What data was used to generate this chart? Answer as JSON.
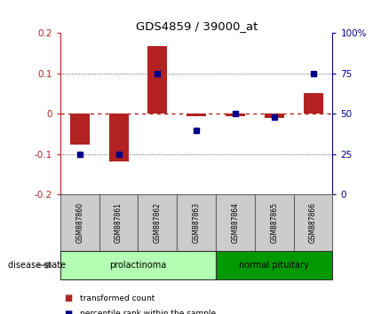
{
  "title": "GDS4859 / 39000_at",
  "samples": [
    "GSM887860",
    "GSM887861",
    "GSM887862",
    "GSM887863",
    "GSM887864",
    "GSM887865",
    "GSM887866"
  ],
  "transformed_count": [
    -0.075,
    -0.118,
    0.168,
    -0.005,
    -0.005,
    -0.01,
    0.052
  ],
  "percentile_rank_raw": [
    25,
    25,
    75,
    40,
    50,
    48,
    75
  ],
  "ylim_left": [
    -0.2,
    0.2
  ],
  "ylim_right": [
    0,
    100
  ],
  "yticks_left": [
    -0.2,
    -0.1,
    0.0,
    0.1,
    0.2
  ],
  "yticks_right": [
    0,
    25,
    50,
    75,
    100
  ],
  "bar_color": "#b22222",
  "dot_color": "#00008b",
  "groups": [
    {
      "label": "prolactinoma",
      "indices": [
        0,
        1,
        2,
        3
      ],
      "light_color": "#b3ffb3",
      "dark_color": "#33cc33"
    },
    {
      "label": "normal pituitary",
      "indices": [
        4,
        5,
        6
      ],
      "light_color": "#33cc33",
      "dark_color": "#009900"
    }
  ],
  "disease_state_label": "disease state",
  "legend_items": [
    {
      "label": "transformed count",
      "color": "#b22222"
    },
    {
      "label": "percentile rank within the sample",
      "color": "#00008b"
    }
  ],
  "sample_box_color": "#cccccc",
  "sample_box_edge": "#666666"
}
